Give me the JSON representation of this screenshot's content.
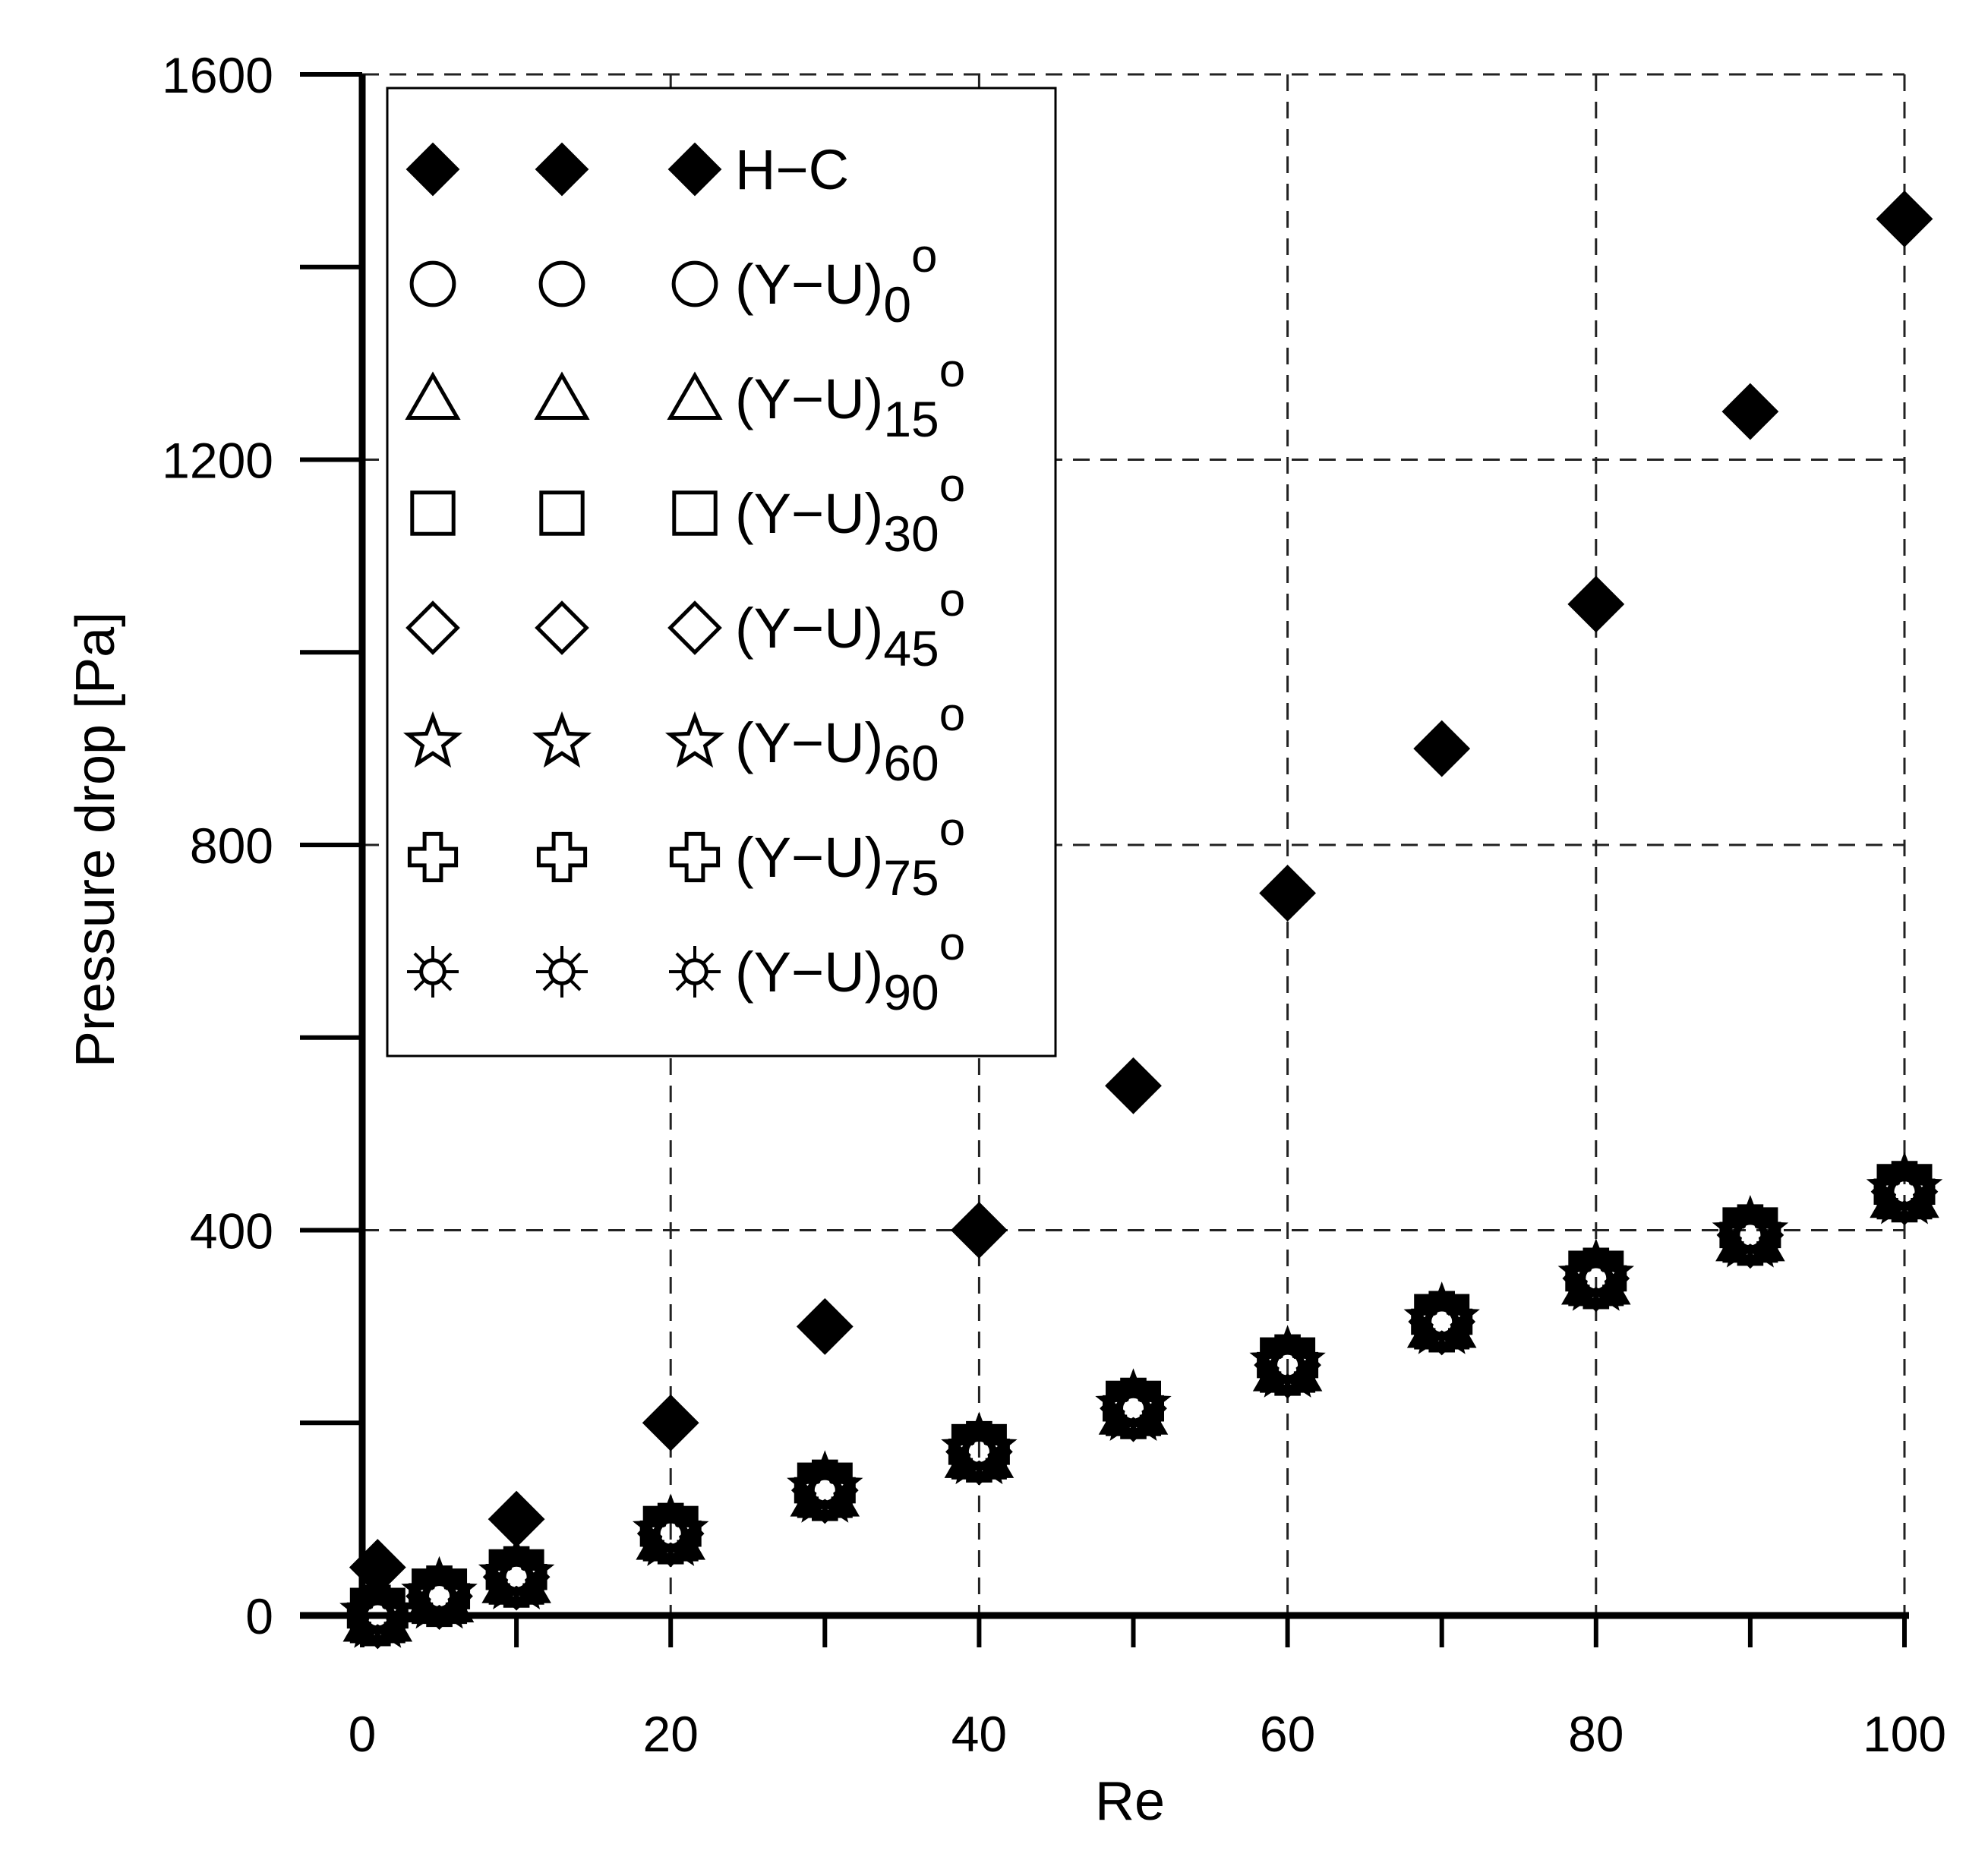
{
  "chart_data": {
    "type": "scatter",
    "title": "",
    "xlabel": "Re",
    "ylabel": "Pressure drop [Pa]",
    "xlim": [
      0,
      100
    ],
    "ylim": [
      0,
      1600
    ],
    "xticks": [
      0,
      20,
      40,
      60,
      80,
      100
    ],
    "xtick_labels": [
      "0",
      "20",
      "40",
      "60",
      "80",
      "100"
    ],
    "yticks": [
      0,
      400,
      800,
      1200,
      1600
    ],
    "ytick_labels": [
      "0",
      "400",
      "800",
      "1200",
      "1600"
    ],
    "grid_x": [
      20,
      40,
      60,
      80,
      100
    ],
    "grid_y": [
      400,
      800,
      1200,
      1600
    ],
    "grid": true,
    "legend_position": "top-left",
    "series": [
      {
        "name": "H−C",
        "subscript": "",
        "marker": "filled-diamond",
        "x": [
          1,
          10,
          20,
          30,
          40,
          50,
          60,
          70,
          80,
          90,
          100
        ],
        "y": [
          50,
          100,
          200,
          300,
          400,
          550,
          750,
          900,
          1050,
          1250,
          1450
        ]
      },
      {
        "name": "(Y−U)",
        "subscript": "0",
        "marker": "circle",
        "x": [
          1,
          5,
          10,
          20,
          30,
          40,
          50,
          60,
          70,
          80,
          90,
          100
        ],
        "y": [
          0,
          20,
          40,
          85,
          130,
          170,
          215,
          260,
          305,
          350,
          395,
          440
        ]
      },
      {
        "name": "(Y−U)",
        "subscript": "15",
        "marker": "triangle",
        "x": [
          1,
          5,
          10,
          20,
          30,
          40,
          50,
          60,
          70,
          80,
          90,
          100
        ],
        "y": [
          0,
          20,
          40,
          85,
          130,
          170,
          215,
          260,
          305,
          350,
          395,
          440
        ]
      },
      {
        "name": "(Y−U)",
        "subscript": "30",
        "marker": "square",
        "x": [
          1,
          5,
          10,
          20,
          30,
          40,
          50,
          60,
          70,
          80,
          90,
          100
        ],
        "y": [
          0,
          20,
          40,
          85,
          130,
          170,
          215,
          260,
          305,
          350,
          395,
          440
        ]
      },
      {
        "name": "(Y−U)",
        "subscript": "45",
        "marker": "diamond",
        "x": [
          1,
          5,
          10,
          20,
          30,
          40,
          50,
          60,
          70,
          80,
          90,
          100
        ],
        "y": [
          0,
          20,
          40,
          85,
          130,
          170,
          215,
          260,
          305,
          350,
          395,
          440
        ]
      },
      {
        "name": "(Y−U)",
        "subscript": "60",
        "marker": "star",
        "x": [
          1,
          5,
          10,
          20,
          30,
          40,
          50,
          60,
          70,
          80,
          90,
          100
        ],
        "y": [
          0,
          20,
          40,
          85,
          130,
          170,
          215,
          260,
          305,
          350,
          395,
          440
        ]
      },
      {
        "name": "(Y−U)",
        "subscript": "75",
        "marker": "cross",
        "x": [
          1,
          5,
          10,
          20,
          30,
          40,
          50,
          60,
          70,
          80,
          90,
          100
        ],
        "y": [
          0,
          20,
          40,
          85,
          130,
          170,
          215,
          260,
          305,
          350,
          395,
          440
        ]
      },
      {
        "name": "(Y−U)",
        "subscript": "90",
        "marker": "sun",
        "x": [
          1,
          5,
          10,
          20,
          30,
          40,
          50,
          60,
          70,
          80,
          90,
          100
        ],
        "y": [
          0,
          20,
          40,
          85,
          130,
          170,
          215,
          260,
          305,
          350,
          395,
          440
        ]
      }
    ],
    "legend_superscript": "o"
  }
}
